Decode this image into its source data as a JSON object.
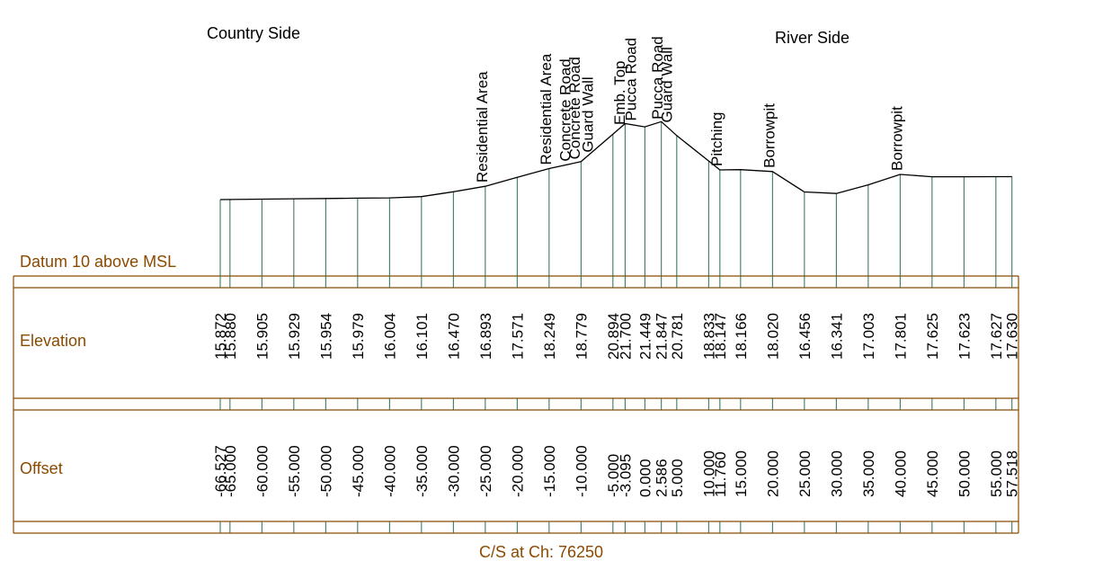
{
  "headers": {
    "left": "Country Side",
    "right": "River Side"
  },
  "rows": {
    "datum": "Datum 10 above MSL",
    "elevation": "Elevation",
    "offset": "Offset"
  },
  "footer": "C/S at Ch: 76250",
  "colors": {
    "profile": "#000000",
    "tick": "#2e6b4b",
    "brown": "#8b4a00",
    "text": "#000000"
  },
  "chart_data": {
    "type": "line",
    "title": "C/S at Ch: 76250",
    "xlabel": "Offset",
    "ylabel": "Elevation",
    "points": [
      {
        "offset": -66.527,
        "elev": 15.872,
        "off_label": "-66.527",
        "elev_label": "15.872"
      },
      {
        "offset": -65.0,
        "elev": 15.88,
        "off_label": "-65.000",
        "elev_label": "15.880"
      },
      {
        "offset": -60.0,
        "elev": 15.905,
        "off_label": "-60.000",
        "elev_label": "15.905"
      },
      {
        "offset": -55.0,
        "elev": 15.929,
        "off_label": "-55.000",
        "elev_label": "15.929"
      },
      {
        "offset": -50.0,
        "elev": 15.954,
        "off_label": "-50.000",
        "elev_label": "15.954"
      },
      {
        "offset": -45.0,
        "elev": 15.979,
        "off_label": "-45.000",
        "elev_label": "15.979"
      },
      {
        "offset": -40.0,
        "elev": 16.004,
        "off_label": "-40.000",
        "elev_label": "16.004"
      },
      {
        "offset": -35.0,
        "elev": 16.101,
        "off_label": "-35.000",
        "elev_label": "16.101"
      },
      {
        "offset": -30.0,
        "elev": 16.47,
        "off_label": "-30.000",
        "elev_label": "16.470"
      },
      {
        "offset": -25.0,
        "elev": 16.893,
        "off_label": "-25.000",
        "elev_label": "16.893",
        "annotation": "Residential Area"
      },
      {
        "offset": -20.0,
        "elev": 17.571,
        "off_label": "-20.000",
        "elev_label": "17.571"
      },
      {
        "offset": -15.0,
        "elev": 18.249,
        "off_label": "-15.000",
        "elev_label": "18.249",
        "annotation": "Residential Area"
      },
      {
        "offset": -10.0,
        "elev": 18.779,
        "off_label": "-10.000",
        "elev_label": "18.779"
      },
      {
        "offset": -5.0,
        "elev": 20.894,
        "off_label": "-5.000",
        "elev_label": "20.894"
      },
      {
        "offset": -3.095,
        "elev": 21.7,
        "off_label": "-3.095",
        "elev_label": "21.700"
      },
      {
        "offset": 0.0,
        "elev": 21.449,
        "off_label": "0.000",
        "elev_label": "21.449"
      },
      {
        "offset": 2.586,
        "elev": 21.847,
        "off_label": "2.586",
        "elev_label": "21.847"
      },
      {
        "offset": 5.0,
        "elev": 20.781,
        "off_label": "5.000",
        "elev_label": "20.781"
      },
      {
        "offset": 10.0,
        "elev": 18.833,
        "off_label": "10.000",
        "elev_label": "18.833"
      },
      {
        "offset": 11.76,
        "elev": 18.147,
        "off_label": "11.760",
        "elev_label": "18.147",
        "annotation": "Pitching"
      },
      {
        "offset": 15.0,
        "elev": 18.166,
        "off_label": "15.000",
        "elev_label": "18.166"
      },
      {
        "offset": 20.0,
        "elev": 18.02,
        "off_label": "20.000",
        "elev_label": "18.020",
        "annotation": "Borrowpit"
      },
      {
        "offset": 25.0,
        "elev": 16.456,
        "off_label": "25.000",
        "elev_label": "16.456"
      },
      {
        "offset": 30.0,
        "elev": 16.341,
        "off_label": "30.000",
        "elev_label": "16.341"
      },
      {
        "offset": 35.0,
        "elev": 17.003,
        "off_label": "35.000",
        "elev_label": "17.003"
      },
      {
        "offset": 40.0,
        "elev": 17.801,
        "off_label": "40.000",
        "elev_label": "17.801",
        "annotation": "Borrowpit"
      },
      {
        "offset": 45.0,
        "elev": 17.625,
        "off_label": "45.000",
        "elev_label": "17.625"
      },
      {
        "offset": 50.0,
        "elev": 17.623,
        "off_label": "50.000",
        "elev_label": "17.623"
      },
      {
        "offset": 55.0,
        "elev": 17.627,
        "off_label": "55.000",
        "elev_label": "17.627"
      },
      {
        "offset": 57.518,
        "elev": 17.63,
        "off_label": "57.518",
        "elev_label": "17.630"
      }
    ],
    "extra_annotations": [
      {
        "offset": -12.5,
        "text": "Concrete Road"
      },
      {
        "offset": -11.0,
        "text": "Concrete Road"
      },
      {
        "offset": -9.0,
        "text": "Guard Wall"
      },
      {
        "offset": -4.0,
        "text": "Emb. Top"
      },
      {
        "offset": -2.2,
        "text": "Pucca Road"
      },
      {
        "offset": 1.9,
        "text": "Pucca Road"
      },
      {
        "offset": 3.4,
        "text": "Guard Wall"
      }
    ]
  }
}
